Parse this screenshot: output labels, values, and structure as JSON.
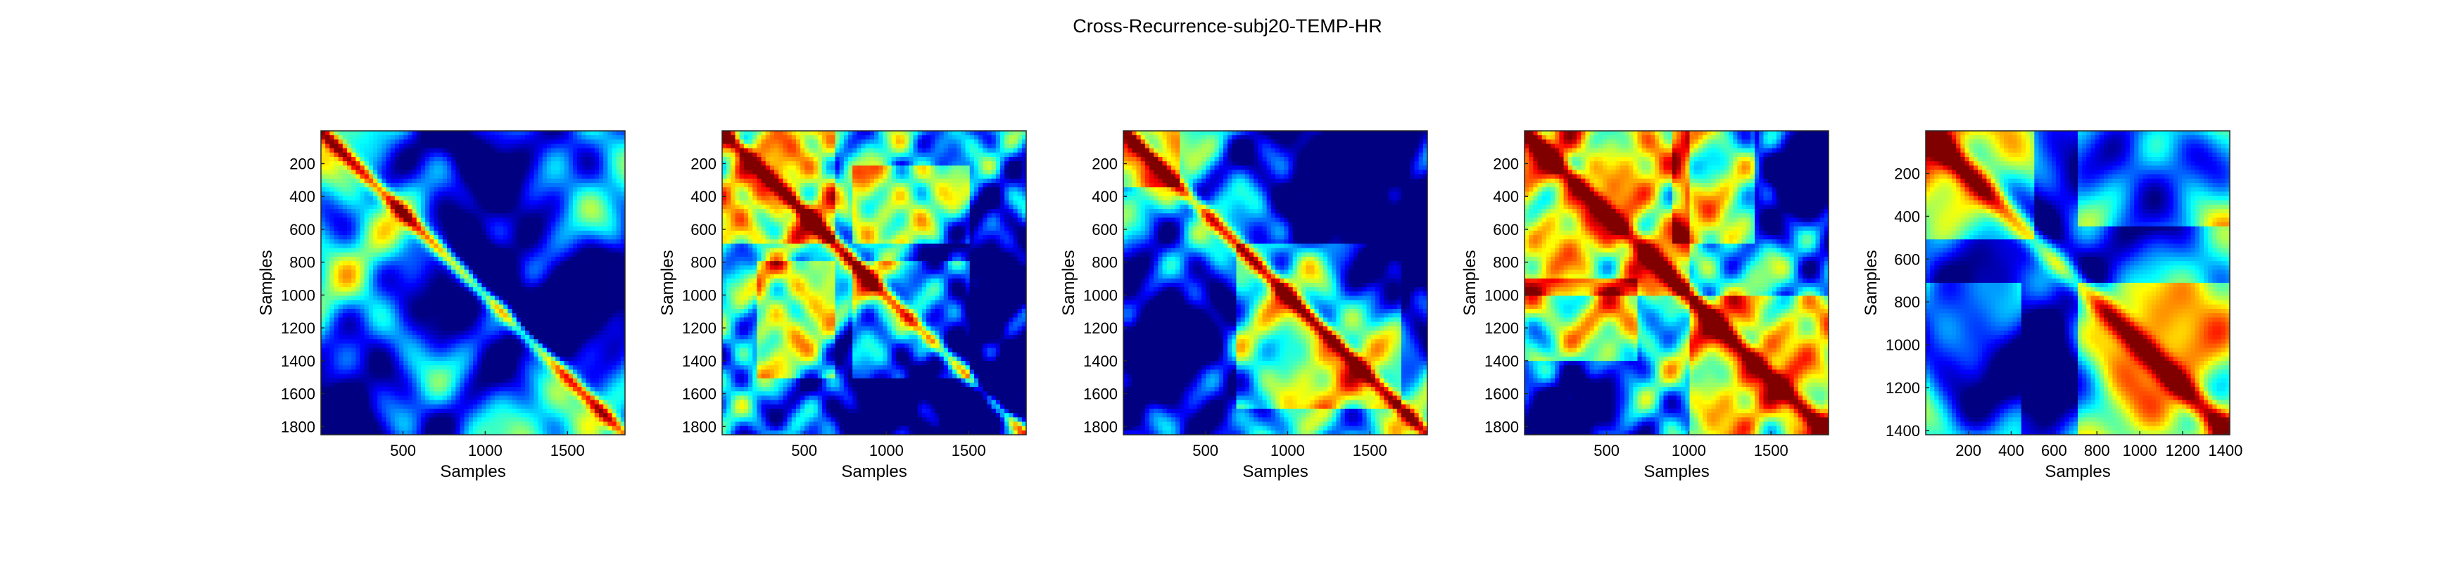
{
  "figure": {
    "title": "Cross-Recurrence-subj20-TEMP-HR"
  },
  "colors": {
    "background": "#ffffff",
    "axis": "#262626",
    "colormap": "jet"
  },
  "chart_data": [
    {
      "type": "heatmap",
      "xlabel": "Samples",
      "ylabel": "Samples",
      "xlim": [
        1,
        1850
      ],
      "ylim": [
        1,
        1850
      ],
      "y_reversed": true,
      "xticks": [
        500,
        1000,
        1500
      ],
      "yticks": [
        200,
        400,
        600,
        800,
        1000,
        1200,
        1400,
        1600,
        1800
      ],
      "colormap": "jet",
      "pattern": {
        "diag_width": 30,
        "blobs": [
          [
            150,
            1850,
            0.22
          ],
          [
            900,
            150,
            0.2
          ],
          [
            1650,
            1100,
            0.22
          ],
          [
            1000,
            1000,
            0.25
          ]
        ],
        "grid": 6,
        "seed": 1,
        "high": []
      }
    },
    {
      "type": "heatmap",
      "xlabel": "Samples",
      "ylabel": "Samples",
      "xlim": [
        1,
        1850
      ],
      "ylim": [
        1,
        1850
      ],
      "y_reversed": true,
      "xticks": [
        500,
        1000,
        1500
      ],
      "yticks": [
        200,
        400,
        600,
        800,
        1000,
        1200,
        1400,
        1600,
        1800
      ],
      "colormap": "jet",
      "pattern": {
        "diag_width": 30,
        "blobs": [
          [
            1600,
            1000,
            0.28
          ],
          [
            1050,
            1650,
            0.25
          ],
          [
            1650,
            1650,
            0.15
          ]
        ],
        "grid": 10,
        "seed": 2,
        "high": [
          [
            0,
            700,
            0,
            700
          ],
          [
            800,
            1500,
            800,
            1500
          ],
          [
            200,
            700,
            800,
            1500
          ],
          [
            800,
            1500,
            200,
            700
          ]
        ]
      }
    },
    {
      "type": "heatmap",
      "xlabel": "Samples",
      "ylabel": "Samples",
      "xlim": [
        1,
        1850
      ],
      "ylim": [
        1,
        1850
      ],
      "y_reversed": true,
      "xticks": [
        500,
        1000,
        1500
      ],
      "yticks": [
        200,
        400,
        600,
        800,
        1000,
        1200,
        1400,
        1600,
        1800
      ],
      "colormap": "jet",
      "pattern": {
        "diag_width": 30,
        "blobs": [
          [
            250,
            1300,
            0.3
          ],
          [
            1300,
            250,
            0.3
          ],
          [
            1750,
            800,
            0.25
          ]
        ],
        "grid": 8,
        "seed": 3,
        "high": [
          [
            700,
            1700,
            700,
            1700
          ],
          [
            0,
            350,
            0,
            350
          ]
        ]
      }
    },
    {
      "type": "heatmap",
      "xlabel": "Samples",
      "ylabel": "Samples",
      "xlim": [
        1,
        1850
      ],
      "ylim": [
        1,
        1850
      ],
      "y_reversed": true,
      "xticks": [
        500,
        1000,
        1500
      ],
      "yticks": [
        200,
        400,
        600,
        800,
        1000,
        1200,
        1400,
        1600,
        1800
      ],
      "colormap": "jet",
      "pattern": {
        "diag_width": 40,
        "blobs": [
          [
            1750,
            300,
            0.2
          ],
          [
            300,
            1750,
            0.18
          ]
        ],
        "grid": 9,
        "seed": 4,
        "high": [
          [
            0,
            1000,
            0,
            1000
          ],
          [
            1000,
            1850,
            1000,
            1850
          ],
          [
            900,
            1400,
            0,
            700
          ],
          [
            0,
            700,
            900,
            1400
          ]
        ]
      }
    },
    {
      "type": "heatmap",
      "xlabel": "Samples",
      "ylabel": "Samples",
      "xlim": [
        1,
        1420
      ],
      "ylim": [
        1,
        1420
      ],
      "y_reversed": true,
      "xticks": [
        200,
        400,
        600,
        800,
        1000,
        1200,
        1400
      ],
      "yticks": [
        200,
        400,
        600,
        800,
        1000,
        1200,
        1400
      ],
      "colormap": "jet",
      "pattern": {
        "diag_width": 40,
        "blobs": [
          [
            550,
            550,
            0.22
          ],
          [
            1000,
            150,
            0.2
          ],
          [
            150,
            1000,
            0.2
          ],
          [
            550,
            1200,
            0.18
          ]
        ],
        "grid": 5,
        "seed": 5,
        "high": [
          [
            0,
            500,
            0,
            500
          ],
          [
            700,
            1420,
            700,
            1420
          ],
          [
            700,
            1420,
            0,
            450
          ],
          [
            0,
            450,
            700,
            1420
          ]
        ]
      }
    }
  ]
}
